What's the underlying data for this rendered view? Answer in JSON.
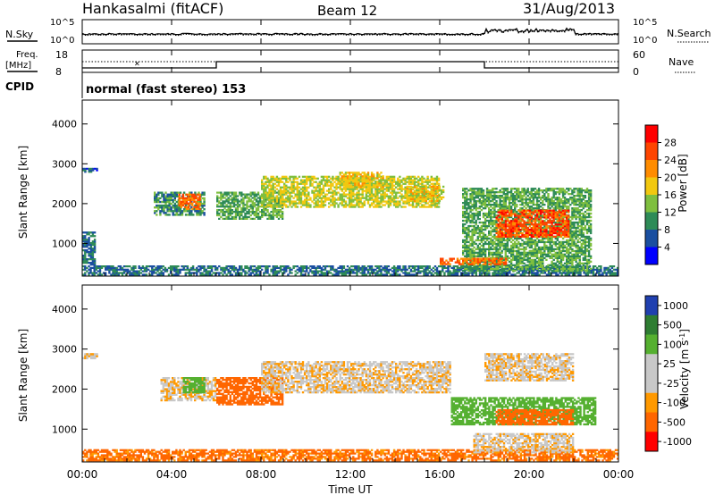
{
  "header": {
    "station": "Hankasalmi (fitACF)",
    "beam": "Beam 12",
    "date": "31/Aug/2013"
  },
  "labels": {
    "n_sky": "N.Sky",
    "n_search": "N.Search",
    "freq": "Freq.",
    "freq_unit": "[MHz]",
    "nave": "Nave",
    "cpid": "CPID",
    "cpid_value": "normal (fast stereo) 153"
  },
  "noise_panel": {
    "left_ticks": [
      "10^5",
      "10^0"
    ],
    "right_ticks": [
      "10^5",
      "10^0"
    ]
  },
  "freq_panel": {
    "left_ticks": [
      "18",
      "8"
    ],
    "right_ticks": [
      "60",
      "0"
    ]
  },
  "colors": {
    "power_scale": [
      "#0000ff",
      "#1a4fa0",
      "#2e8b57",
      "#7fbf3f",
      "#f2c80f",
      "#ff8c00",
      "#ff4500",
      "#ff0000"
    ],
    "velocity_scale": [
      "#2040b0",
      "#2e7d32",
      "#55b030",
      "#c8c8c8",
      "#c8c8c8",
      "#ff9900",
      "#ff6600",
      "#ff0000"
    ]
  },
  "chart_data": [
    {
      "type": "heatmap",
      "name": "power",
      "ylabel": "Slant Range [km]",
      "ylim": [
        180,
        4600
      ],
      "yticks": [
        "1000",
        "2000",
        "3000",
        "4000"
      ],
      "colorbar_label": "Power [dB]",
      "colorbar_ticks": [
        "4",
        "8",
        "12",
        "16",
        "20",
        "24",
        "28"
      ],
      "echo_regions": [
        {
          "t": [
            0.0,
            24.0
          ],
          "range": [
            200,
            450
          ],
          "value": 10
        },
        {
          "t": [
            0.0,
            0.6
          ],
          "range": [
            450,
            1300
          ],
          "value": 10
        },
        {
          "t": [
            0.0,
            0.7
          ],
          "range": [
            2780,
            2900
          ],
          "value": 8
        },
        {
          "t": [
            3.2,
            5.5
          ],
          "range": [
            1700,
            2300
          ],
          "value": 12
        },
        {
          "t": [
            4.3,
            5.3
          ],
          "range": [
            1850,
            2250
          ],
          "value": 26
        },
        {
          "t": [
            6.0,
            9.0
          ],
          "range": [
            1600,
            2300
          ],
          "value": 14
        },
        {
          "t": [
            8.0,
            16.0
          ],
          "range": [
            1900,
            2700
          ],
          "value": 18
        },
        {
          "t": [
            11.5,
            13.5
          ],
          "range": [
            2400,
            2800
          ],
          "value": 20
        },
        {
          "t": [
            14.5,
            16.2
          ],
          "range": [
            2050,
            2450
          ],
          "value": 20
        },
        {
          "t": [
            17.0,
            22.8
          ],
          "range": [
            300,
            2400
          ],
          "value": 14
        },
        {
          "t": [
            18.5,
            21.8
          ],
          "range": [
            1150,
            1850
          ],
          "value": 28
        },
        {
          "t": [
            16.0,
            19.0
          ],
          "range": [
            460,
            640
          ],
          "value": 26
        }
      ]
    },
    {
      "type": "heatmap",
      "name": "velocity",
      "ylabel": "Slant Range [km]",
      "ylim": [
        180,
        4600
      ],
      "yticks": [
        "1000",
        "2000",
        "3000",
        "4000"
      ],
      "colorbar_label": "Velocity [m s^-1]",
      "colorbar_ticks": [
        "1000",
        "500",
        "100",
        "25",
        "-25",
        "-100",
        "-500",
        "-1000"
      ],
      "echo_regions": [
        {
          "t": [
            0.0,
            24.0
          ],
          "range": [
            200,
            500
          ],
          "value": -150
        },
        {
          "t": [
            0.0,
            0.7
          ],
          "range": [
            2750,
            2900
          ],
          "value": 0
        },
        {
          "t": [
            3.5,
            6.0
          ],
          "range": [
            1700,
            2300
          ],
          "value": 0
        },
        {
          "t": [
            4.5,
            5.5
          ],
          "range": [
            1900,
            2300
          ],
          "value": 300
        },
        {
          "t": [
            6.0,
            9.0
          ],
          "range": [
            1600,
            2300
          ],
          "value": -300
        },
        {
          "t": [
            8.0,
            16.5
          ],
          "range": [
            1900,
            2700
          ],
          "value": 0
        },
        {
          "t": [
            16.5,
            23.0
          ],
          "range": [
            1100,
            1800
          ],
          "value": 300
        },
        {
          "t": [
            18.5,
            22.0
          ],
          "range": [
            1100,
            1500
          ],
          "value": -400
        },
        {
          "t": [
            17.5,
            22.0
          ],
          "range": [
            400,
            900
          ],
          "value": 0
        },
        {
          "t": [
            18.0,
            22.0
          ],
          "range": [
            2200,
            2900
          ],
          "value": 0
        }
      ]
    }
  ],
  "x_axis": {
    "label": "Time UT",
    "ticks": [
      "00:00",
      "04:00",
      "08:00",
      "12:00",
      "16:00",
      "20:00",
      "00:00"
    ],
    "range_hours": [
      0,
      24
    ]
  }
}
